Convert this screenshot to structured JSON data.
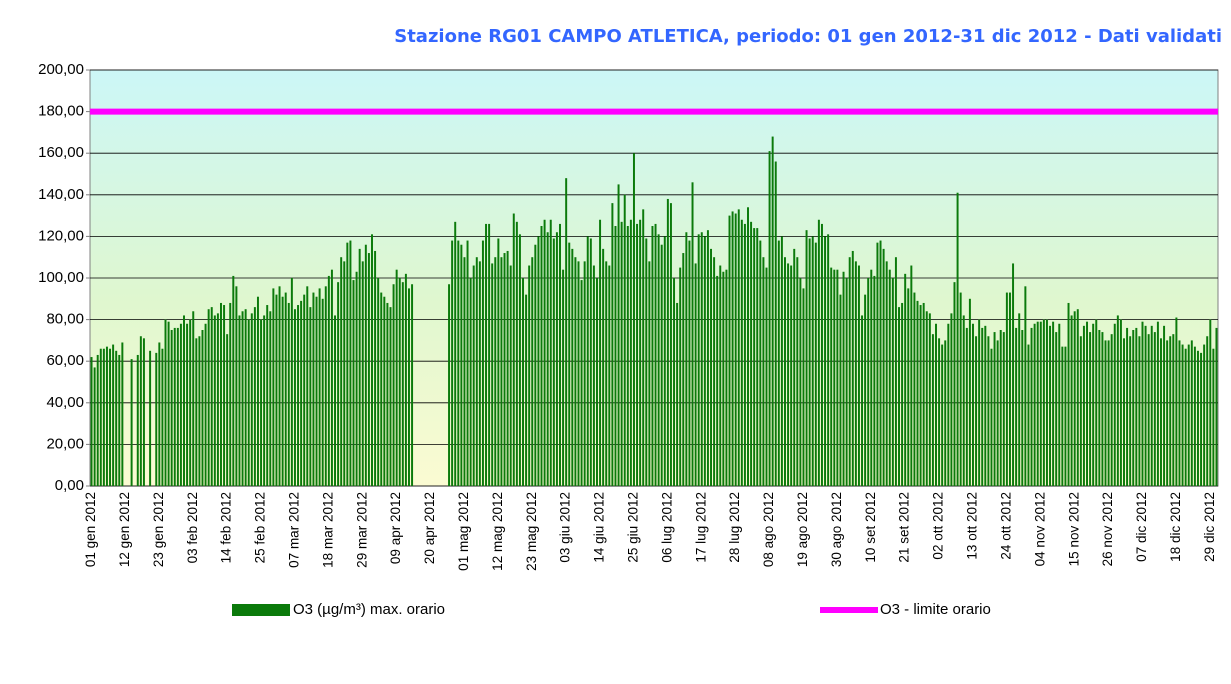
{
  "chart_data": {
    "type": "bar",
    "title": "Stazione RG01 CAMPO ATLETICA, periodo: 01 gen 2012-31 dic 2012 - Dati validati",
    "categories": [
      "01 gen 2012",
      null,
      null,
      null,
      null,
      null,
      null,
      null,
      null,
      null,
      null,
      "12 gen 2012",
      null,
      null,
      null,
      null,
      null,
      null,
      null,
      null,
      null,
      null,
      "23 gen 2012",
      null,
      null,
      null,
      null,
      null,
      null,
      null,
      null,
      null,
      null,
      "03 feb 2012",
      null,
      null,
      null,
      null,
      null,
      null,
      null,
      null,
      null,
      null,
      "14 feb 2012",
      null,
      null,
      null,
      null,
      null,
      null,
      null,
      null,
      null,
      null,
      "25 feb 2012",
      null,
      null,
      null,
      null,
      null,
      null,
      null,
      null,
      null,
      null,
      "07 mar 2012",
      null,
      null,
      null,
      null,
      null,
      null,
      null,
      null,
      null,
      null,
      "18 mar 2012",
      null,
      null,
      null,
      null,
      null,
      null,
      null,
      null,
      null,
      null,
      "29 mar 2012",
      null,
      null,
      null,
      null,
      null,
      null,
      null,
      null,
      null,
      null,
      "09 apr 2012",
      null,
      null,
      null,
      null,
      null,
      null,
      null,
      null,
      null,
      null,
      "20 apr 2012",
      null,
      null,
      null,
      null,
      null,
      null,
      null,
      null,
      null,
      null,
      "01 mag 2012",
      null,
      null,
      null,
      null,
      null,
      null,
      null,
      null,
      null,
      null,
      "12 mag 2012",
      null,
      null,
      null,
      null,
      null,
      null,
      null,
      null,
      null,
      null,
      "23 mag 2012",
      null,
      null,
      null,
      null,
      null,
      null,
      null,
      null,
      null,
      null,
      "03 giu 2012",
      null,
      null,
      null,
      null,
      null,
      null,
      null,
      null,
      null,
      null,
      "14 giu 2012",
      null,
      null,
      null,
      null,
      null,
      null,
      null,
      null,
      null,
      null,
      "25 giu 2012",
      null,
      null,
      null,
      null,
      null,
      null,
      null,
      null,
      null,
      null,
      "06 lug 2012",
      null,
      null,
      null,
      null,
      null,
      null,
      null,
      null,
      null,
      null,
      "17 lug 2012",
      null,
      null,
      null,
      null,
      null,
      null,
      null,
      null,
      null,
      null,
      "28 lug 2012",
      null,
      null,
      null,
      null,
      null,
      null,
      null,
      null,
      null,
      null,
      "08 ago 2012",
      null,
      null,
      null,
      null,
      null,
      null,
      null,
      null,
      null,
      null,
      "19 ago 2012",
      null,
      null,
      null,
      null,
      null,
      null,
      null,
      null,
      null,
      null,
      "30 ago 2012",
      null,
      null,
      null,
      null,
      null,
      null,
      null,
      null,
      null,
      null,
      "10 set 2012",
      null,
      null,
      null,
      null,
      null,
      null,
      null,
      null,
      null,
      null,
      "21 set 2012",
      null,
      null,
      null,
      null,
      null,
      null,
      null,
      null,
      null,
      null,
      "02 ott 2012",
      null,
      null,
      null,
      null,
      null,
      null,
      null,
      null,
      null,
      null,
      "13 ott 2012",
      null,
      null,
      null,
      null,
      null,
      null,
      null,
      null,
      null,
      null,
      "24 ott 2012",
      null,
      null,
      null,
      null,
      null,
      null,
      null,
      null,
      null,
      null,
      "04 nov 2012",
      null,
      null,
      null,
      null,
      null,
      null,
      null,
      null,
      null,
      null,
      "15 nov 2012",
      null,
      null,
      null,
      null,
      null,
      null,
      null,
      null,
      null,
      null,
      "26 nov 2012",
      null,
      null,
      null,
      null,
      null,
      null,
      null,
      null,
      null,
      null,
      "07 dic 2012",
      null,
      null,
      null,
      null,
      null,
      null,
      null,
      null,
      null,
      null,
      "18 dic 2012",
      null,
      null,
      null,
      null,
      null,
      null,
      null,
      null,
      null,
      null,
      "29 dic 2012",
      null,
      null
    ],
    "series": [
      {
        "name": "O3 (µg/m³) max. orario",
        "color": "#0b7a0b",
        "values": [
          62,
          57,
          63,
          66,
          66,
          67,
          66,
          68,
          65,
          63,
          69,
          null,
          null,
          61,
          null,
          63,
          72,
          71,
          null,
          65,
          null,
          64,
          69,
          66,
          80,
          79,
          75,
          76,
          76,
          78,
          82,
          78,
          80,
          84,
          71,
          72,
          75,
          78,
          85,
          86,
          82,
          83,
          88,
          87,
          73,
          88,
          101,
          96,
          82,
          84,
          85,
          80,
          83,
          86,
          91,
          80,
          82,
          87,
          84,
          95,
          92,
          96,
          91,
          93,
          88,
          100,
          85,
          87,
          89,
          92,
          96,
          86,
          93,
          91,
          95,
          90,
          96,
          101,
          104,
          82,
          98,
          110,
          108,
          117,
          118,
          99,
          103,
          114,
          108,
          116,
          112,
          121,
          113,
          100,
          93,
          91,
          88,
          86,
          97,
          104,
          100,
          98,
          102,
          95,
          97,
          null,
          null,
          null,
          null,
          null,
          null,
          null,
          null,
          null,
          null,
          null,
          97,
          118,
          127,
          118,
          116,
          110,
          118,
          100,
          106,
          110,
          108,
          118,
          126,
          126,
          107,
          110,
          119,
          110,
          112,
          113,
          106,
          131,
          127,
          121,
          100,
          92,
          106,
          110,
          116,
          120,
          125,
          128,
          122,
          128,
          119,
          122,
          126,
          104,
          148,
          117,
          114,
          110,
          108,
          99,
          108,
          120,
          119,
          106,
          100,
          128,
          114,
          108,
          106,
          136,
          125,
          145,
          127,
          140,
          125,
          128,
          160,
          126,
          128,
          133,
          119,
          108,
          125,
          126,
          121,
          116,
          120,
          138,
          136,
          100,
          88,
          105,
          112,
          122,
          118,
          146,
          107,
          121,
          122,
          120,
          123,
          114,
          110,
          101,
          106,
          103,
          104,
          130,
          132,
          131,
          133,
          128,
          126,
          134,
          127,
          124,
          124,
          118,
          110,
          105,
          161,
          168,
          156,
          118,
          120,
          110,
          107,
          106,
          114,
          110,
          100,
          95,
          123,
          119,
          120,
          117,
          128,
          126,
          120,
          121,
          105,
          104,
          104,
          92,
          103,
          100,
          110,
          113,
          108,
          106,
          82,
          92,
          100,
          104,
          101,
          117,
          118,
          114,
          108,
          104,
          100,
          110,
          86,
          88,
          102,
          95,
          106,
          93,
          89,
          87,
          88,
          84,
          83,
          73,
          78,
          71,
          68,
          70,
          78,
          83,
          98,
          141,
          93,
          82,
          76,
          90,
          78,
          72,
          80,
          76,
          77,
          72,
          66,
          74,
          70,
          75,
          74,
          93,
          93,
          107,
          76,
          83,
          75,
          96,
          68,
          76,
          78,
          79,
          79,
          80,
          80,
          77,
          79,
          74,
          78,
          67,
          67,
          88,
          82,
          84,
          85,
          72,
          77,
          79,
          74,
          78,
          80,
          75,
          74,
          70,
          70,
          73,
          78,
          82,
          80,
          71,
          76,
          72,
          75,
          76,
          72,
          79,
          77,
          73,
          77,
          74,
          79,
          71,
          77,
          70,
          72,
          73,
          81,
          70,
          68,
          66,
          68,
          70,
          67,
          65,
          64,
          68,
          72,
          80,
          66,
          76
        ]
      }
    ],
    "reference_line": {
      "name": "O3 - limite orario",
      "value": 180,
      "color": "#ff00ff"
    },
    "ylim": [
      0,
      200
    ],
    "yticks": [
      {
        "value": 0,
        "label": "0,00"
      },
      {
        "value": 20,
        "label": "20,00"
      },
      {
        "value": 40,
        "label": "40,00"
      },
      {
        "value": 60,
        "label": "60,00"
      },
      {
        "value": 80,
        "label": "80,00"
      },
      {
        "value": 100,
        "label": "100,00"
      },
      {
        "value": 120,
        "label": "120,00"
      },
      {
        "value": 140,
        "label": "140,00"
      },
      {
        "value": 160,
        "label": "160,00"
      },
      {
        "value": 180,
        "label": "180,00"
      },
      {
        "value": 200,
        "label": "200,00"
      }
    ],
    "grid": true
  }
}
